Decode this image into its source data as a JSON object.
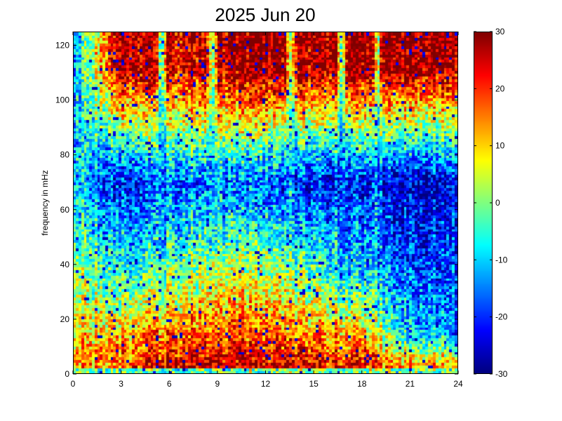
{
  "chart_data": {
    "type": "heatmap",
    "title": "2025 Jun 20",
    "xlabel": "",
    "ylabel": "frequency in mHz",
    "xlim": [
      0,
      24
    ],
    "ylim": [
      0,
      125
    ],
    "x_ticks": [
      0,
      3,
      6,
      9,
      12,
      15,
      18,
      21,
      24
    ],
    "x_tick_labels": [
      "0",
      "3",
      "6",
      "9",
      "12",
      "15",
      "18",
      "21",
      "24"
    ],
    "y_ticks": [
      0,
      20,
      40,
      60,
      80,
      100,
      120
    ],
    "y_tick_labels": [
      "0",
      "20",
      "40",
      "60",
      "80",
      "100",
      "120"
    ],
    "colormap": "jet",
    "clim": [
      -30,
      30
    ],
    "colorbar_ticks": [
      -30,
      -20,
      -10,
      0,
      10,
      20,
      30
    ],
    "colorbar_tick_labels": [
      "-30",
      "-20",
      "-10",
      "0",
      "10",
      "20",
      "30"
    ],
    "grid": false,
    "time_bins": 144,
    "freq_bins": 125,
    "band_profile": {
      "note": "approximate power (colour value) by frequency band, sampled across the day",
      "hours": [
        0,
        3,
        6,
        9,
        12,
        15,
        18,
        21,
        24
      ],
      "f_0_5_mHz": [
        12,
        18,
        26,
        26,
        26,
        24,
        22,
        14,
        14
      ],
      "f_10_20_mHz": [
        8,
        12,
        16,
        18,
        17,
        14,
        12,
        -10,
        -14
      ],
      "f_30_40_mHz": [
        2,
        -4,
        0,
        6,
        4,
        0,
        -8,
        -16,
        -18
      ],
      "f_60_80_mHz": [
        -10,
        -22,
        -18,
        -14,
        -18,
        -22,
        -22,
        -26,
        -24
      ],
      "f_100_125_mHz": [
        -14,
        30,
        24,
        28,
        30,
        28,
        30,
        30,
        28
      ]
    }
  }
}
